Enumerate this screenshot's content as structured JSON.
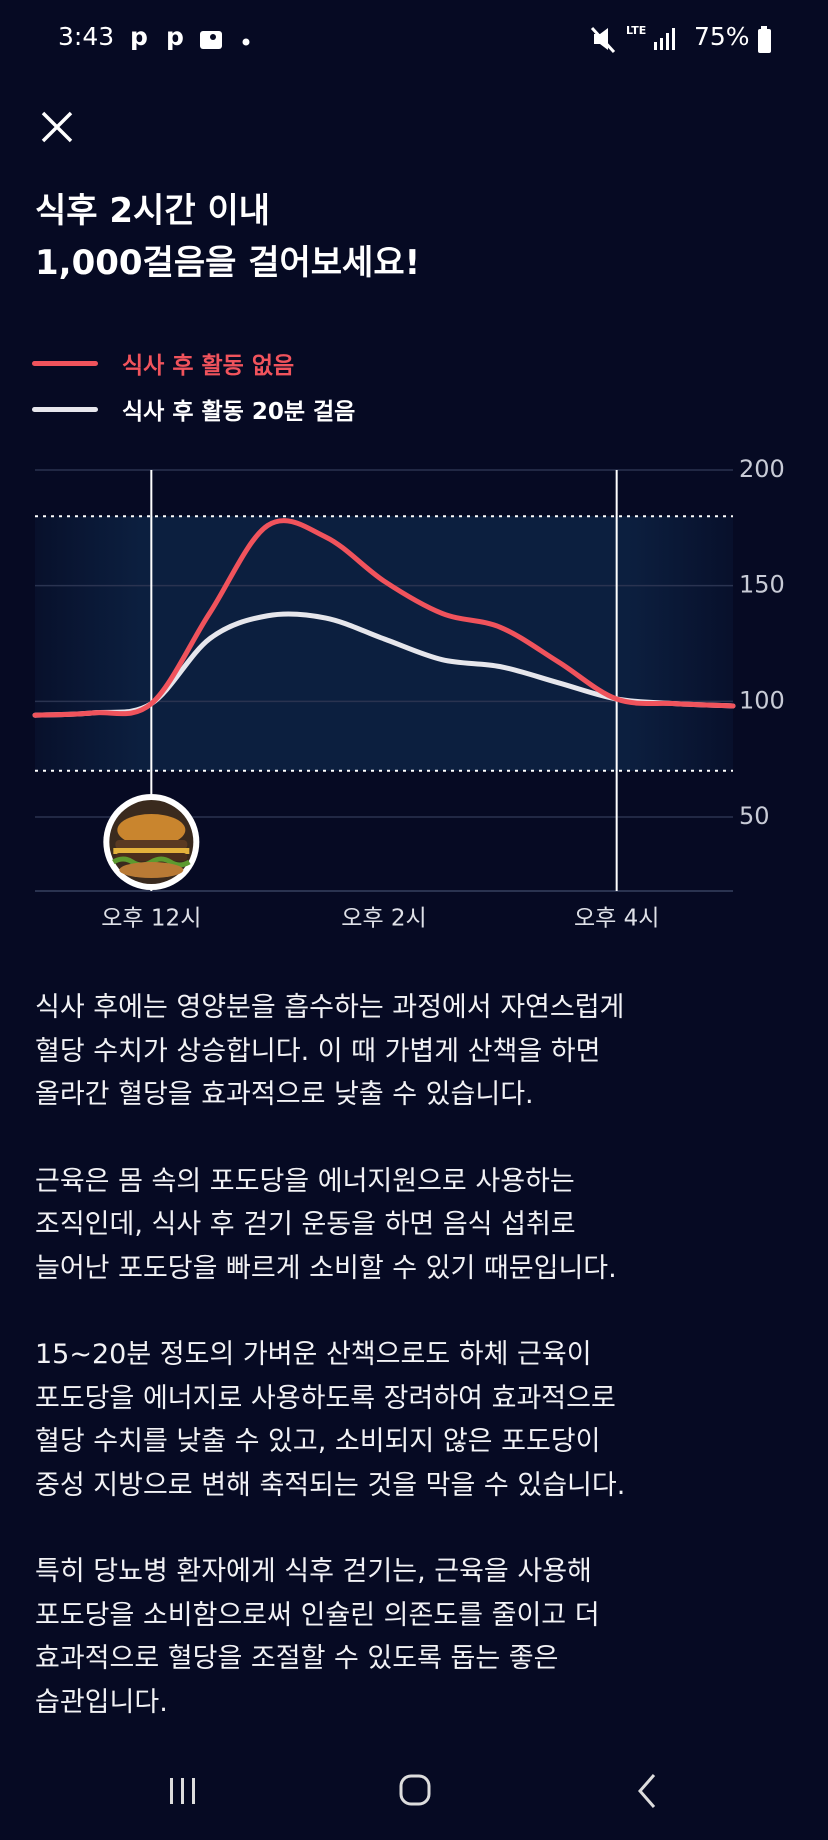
{
  "status_bar": {
    "time": "3:43",
    "notification_icons": [
      "p",
      "p"
    ],
    "battery": "75%",
    "network": "LTE"
  },
  "header": {
    "title_lines": [
      "식후 2시간 이내",
      "1,000걸음을 걸어보세요!"
    ]
  },
  "chart_data": {
    "type": "line",
    "x": [
      11,
      11.5,
      12,
      12.5,
      13,
      13.5,
      14,
      14.5,
      15,
      15.5,
      16,
      16.5,
      17
    ],
    "series": [
      {
        "name": "식사 후 활동 없음",
        "color": "#f0535c",
        "values": [
          94,
          95,
          99,
          138,
          176,
          171,
          152,
          138,
          132,
          117,
          101,
          99,
          98
        ]
      },
      {
        "name": "식사 후 활동 20분 걸음",
        "color": "#e6e6ec",
        "values": [
          94,
          95,
          99,
          127,
          137,
          136,
          127,
          118,
          115,
          108,
          101,
          99,
          98
        ]
      }
    ],
    "xlim": [
      11,
      17
    ],
    "xticks": [
      {
        "value": 12,
        "label": "오후 12시"
      },
      {
        "value": 14,
        "label": "오후 2시"
      },
      {
        "value": 16,
        "label": "오후 4시"
      }
    ],
    "ylim": [
      18,
      200
    ],
    "yticks": [
      50,
      100,
      150,
      200
    ],
    "grid": true,
    "target_range": [
      70,
      180
    ],
    "vlines": [
      12,
      16
    ],
    "meal_time": 12,
    "legend": "top-left"
  },
  "body": {
    "paragraphs": [
      [
        "식사 후에는 영양분을 흡수하는 과정에서 자연스럽게",
        "혈당 수치가 상승합니다. 이 때 가볍게 산책을 하면",
        "올라간 혈당을 효과적으로 낮출 수 있습니다."
      ],
      [
        "근육은 몸 속의 포도당을 에너지원으로 사용하는",
        "조직인데, 식사 후 걷기 운동을 하면 음식 섭취로",
        "늘어난 포도당을 빠르게 소비할 수 있기 때문입니다."
      ],
      [
        "15~20분 정도의 가벼운 산책으로도 하체 근육이",
        "포도당을 에너지로 사용하도록 장려하여 효과적으로",
        "혈당 수치를 낮출 수 있고, 소비되지 않은 포도당이",
        "중성 지방으로 변해 축적되는 것을 막을 수 있습니다."
      ],
      [
        "특히 당뇨병 환자에게 식후 걷기는, 근육을 사용해",
        "포도당을 소비함으로써 인슐린 의존도를 줄이고 더",
        "효과적으로 혈당을 조절할 수 있도록 돕는 좋은",
        "습관입니다."
      ]
    ]
  }
}
